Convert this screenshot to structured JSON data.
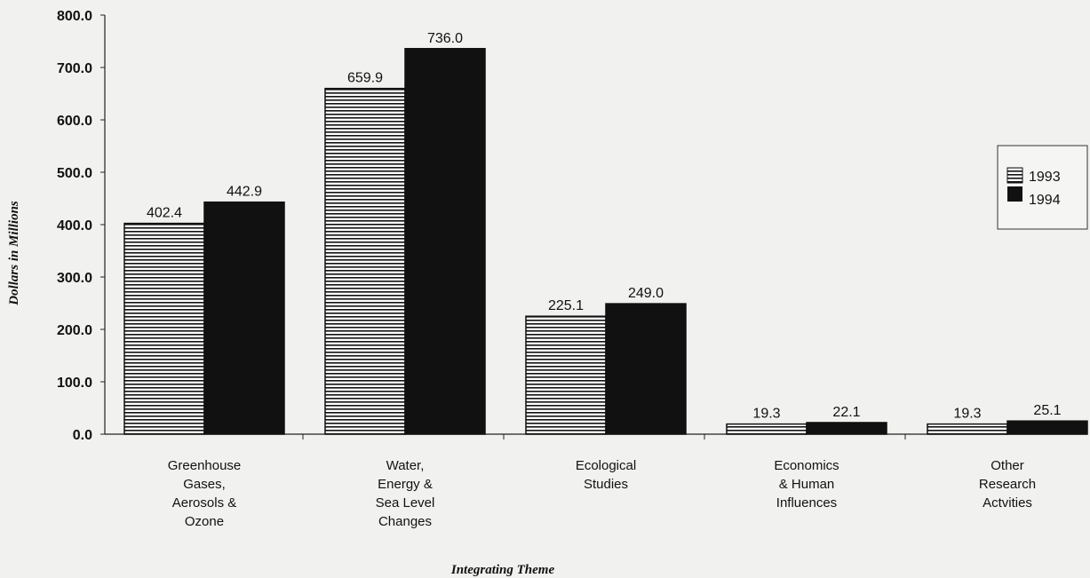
{
  "chart_data": {
    "type": "bar",
    "title": "",
    "xlabel": "Integrating Theme",
    "ylabel": "Dollars in Millions",
    "ylim": [
      0,
      800
    ],
    "yticks": [
      "0.0",
      "100.0",
      "200.0",
      "300.0",
      "400.0",
      "500.0",
      "600.0",
      "700.0",
      "800.0"
    ],
    "categories": [
      [
        "Greenhouse",
        "Gases,",
        "Aerosols &",
        "Ozone"
      ],
      [
        "Water,",
        "Energy &",
        "Sea Level",
        "Changes"
      ],
      [
        "Ecological",
        "Studies"
      ],
      [
        "Economics",
        "& Human",
        "Influences"
      ],
      [
        "Other",
        "Research",
        "Actvities"
      ]
    ],
    "series": [
      {
        "name": "1993",
        "pattern": "horizontal-stripes",
        "values": [
          402.4,
          659.9,
          225.1,
          19.3,
          19.3
        ],
        "labels": [
          "402.4",
          "659.9",
          "225.1",
          "19.3",
          "19.3"
        ]
      },
      {
        "name": "1994",
        "pattern": "solid",
        "values": [
          442.9,
          736.0,
          249.0,
          22.1,
          25.1
        ],
        "labels": [
          "442.9",
          "736.0",
          "249.0",
          "22.1",
          "25.1"
        ]
      }
    ],
    "legend_position": "right",
    "colors": {
      "solid": "#111111",
      "stripe": "#111111",
      "background": "#f1f1ef"
    }
  }
}
